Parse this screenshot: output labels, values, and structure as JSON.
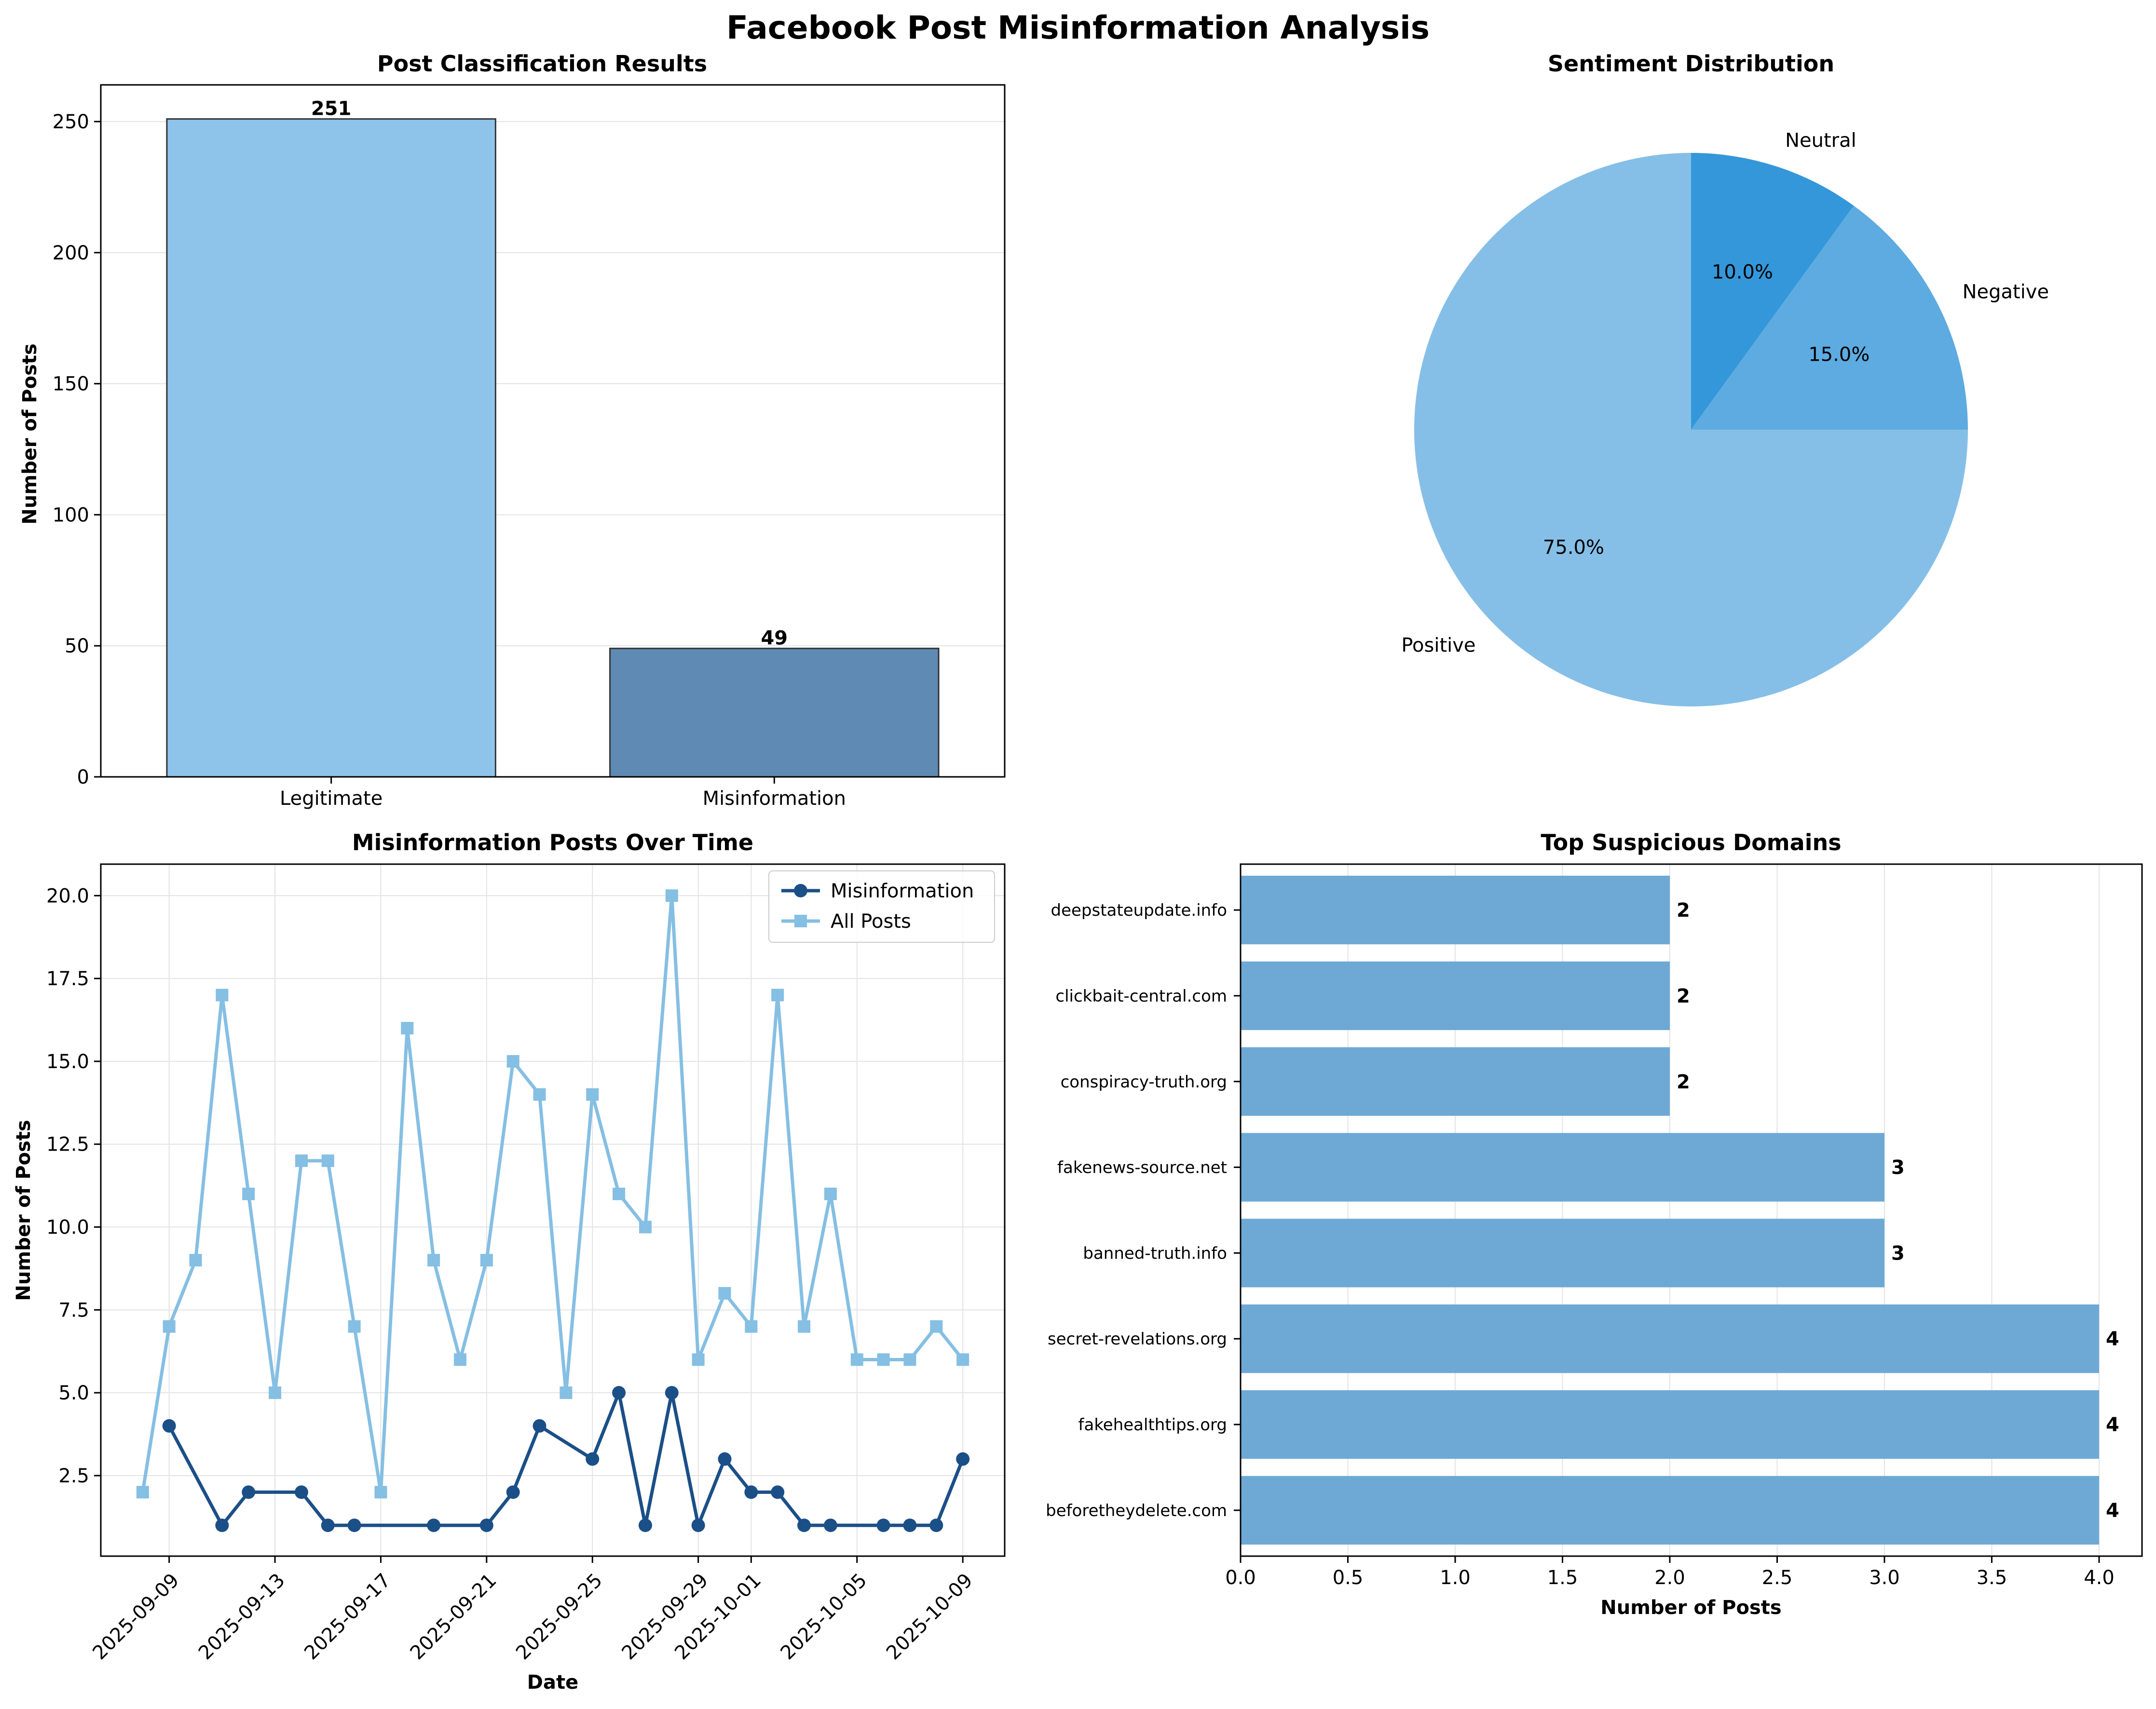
{
  "figure_title": "Facebook Post Misinformation Analysis",
  "colors": {
    "legit_bar": "#8ec4ea",
    "misinfo_bar": "#5f8ab3",
    "pie_positive": "#85bfe7",
    "pie_negative": "#5dabe0",
    "pie_neutral": "#3497da",
    "line_misinfo": "#1b4f87",
    "line_all": "#85bfe3",
    "domain_bar": "#6ea9d5"
  },
  "chart_data": [
    {
      "type": "bar",
      "title": "Post Classification Results",
      "xlabel": "",
      "ylabel": "Number of Posts",
      "categories": [
        "Legitimate",
        "Misinformation"
      ],
      "values": [
        251,
        49
      ],
      "value_labels": [
        "251",
        "49"
      ],
      "ylim": [
        0,
        264
      ],
      "yticks": [
        0,
        50,
        100,
        150,
        200,
        250
      ],
      "grid": true
    },
    {
      "type": "pie",
      "title": "Sentiment Distribution",
      "labels": [
        "Positive",
        "Negative",
        "Neutral"
      ],
      "values": [
        75.0,
        15.0,
        10.0
      ],
      "pct_labels": [
        "75.0%",
        "15.0%",
        "10.0%"
      ]
    },
    {
      "type": "line",
      "title": "Misinformation Posts Over Time",
      "xlabel": "Date",
      "ylabel": "Number of Posts",
      "legend_position": "top-right",
      "ylim": [
        0.07,
        20.95
      ],
      "yticks": [
        2.5,
        5.0,
        7.5,
        10.0,
        12.5,
        15.0,
        17.5,
        20.0
      ],
      "ytick_labels": [
        "2.5",
        "5.0",
        "7.5",
        "10.0",
        "12.5",
        "15.0",
        "17.5",
        "20.0"
      ],
      "xlim": [
        "2025-09-06T10:00",
        "2025-10-10T14:00"
      ],
      "xticks": [
        "2025-09-09",
        "2025-09-13",
        "2025-09-17",
        "2025-09-21",
        "2025-09-25",
        "2025-09-29",
        "2025-10-01",
        "2025-10-05",
        "2025-10-09"
      ],
      "grid": true,
      "series": [
        {
          "name": "Misinformation",
          "marker": "circle",
          "x": [
            "2025-09-09",
            "2025-09-11",
            "2025-09-12",
            "2025-09-14",
            "2025-09-15",
            "2025-09-16",
            "2025-09-19",
            "2025-09-21",
            "2025-09-22",
            "2025-09-23",
            "2025-09-25",
            "2025-09-26",
            "2025-09-27",
            "2025-09-28",
            "2025-09-29",
            "2025-09-30",
            "2025-10-01",
            "2025-10-02",
            "2025-10-03",
            "2025-10-04",
            "2025-10-06",
            "2025-10-07",
            "2025-10-08",
            "2025-10-09"
          ],
          "y": [
            4,
            1,
            2,
            2,
            1,
            1,
            1,
            1,
            2,
            4,
            3,
            5,
            1,
            5,
            1,
            3,
            2,
            2,
            1,
            1,
            1,
            1,
            1,
            3
          ]
        },
        {
          "name": "All Posts",
          "marker": "square",
          "x": [
            "2025-09-08",
            "2025-09-09",
            "2025-09-10",
            "2025-09-11",
            "2025-09-12",
            "2025-09-13",
            "2025-09-14",
            "2025-09-15",
            "2025-09-16",
            "2025-09-17",
            "2025-09-18",
            "2025-09-19",
            "2025-09-20",
            "2025-09-21",
            "2025-09-22",
            "2025-09-23",
            "2025-09-24",
            "2025-09-25",
            "2025-09-26",
            "2025-09-27",
            "2025-09-28",
            "2025-09-29",
            "2025-09-30",
            "2025-10-01",
            "2025-10-02",
            "2025-10-03",
            "2025-10-04",
            "2025-10-05",
            "2025-10-06",
            "2025-10-07",
            "2025-10-08",
            "2025-10-09"
          ],
          "y": [
            2,
            7,
            9,
            17,
            11,
            5,
            12,
            12,
            7,
            2,
            16,
            9,
            6,
            9,
            15,
            14,
            5,
            14,
            11,
            10,
            20,
            6,
            8,
            7,
            17,
            7,
            11,
            6,
            6,
            6,
            7,
            6
          ]
        }
      ]
    },
    {
      "type": "bar",
      "orientation": "horizontal",
      "title": "Top Suspicious Domains",
      "xlabel": "Number of Posts",
      "ylabel": "",
      "categories": [
        "beforetheydelete.com",
        "fakehealthtips.org",
        "secret-revelations.org",
        "banned-truth.info",
        "fakenews-source.net",
        "conspiracy-truth.org",
        "clickbait-central.com",
        "deepstateupdate.info"
      ],
      "values": [
        4,
        4,
        4,
        3,
        3,
        2,
        2,
        2
      ],
      "value_labels": [
        "4",
        "4",
        "4",
        "3",
        "3",
        "2",
        "2",
        "2"
      ],
      "xlim": [
        0,
        4.2
      ],
      "xticks": [
        0.0,
        0.5,
        1.0,
        1.5,
        2.0,
        2.5,
        3.0,
        3.5,
        4.0
      ],
      "xtick_labels": [
        "0.0",
        "0.5",
        "1.0",
        "1.5",
        "2.0",
        "2.5",
        "3.0",
        "3.5",
        "4.0"
      ],
      "grid": true
    }
  ]
}
